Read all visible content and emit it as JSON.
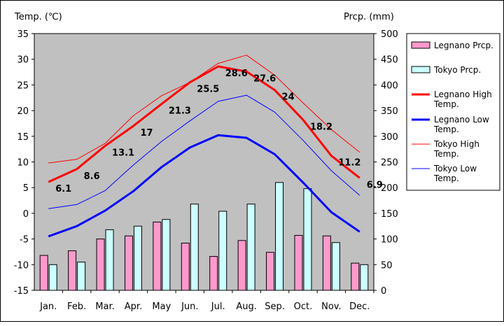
{
  "chart_data": {
    "type": "bar+line",
    "categories": [
      "Jan.",
      "Feb.",
      "Mar.",
      "Apr.",
      "May",
      "Jun.",
      "Jul.",
      "Aug.",
      "Sep.",
      "Oct.",
      "Nov.",
      "Dec."
    ],
    "y_left_label": "Temp. (℃)",
    "y_right_label": "Prcp. (mm)",
    "y_left_lim": [
      -15,
      35
    ],
    "y_left_ticks": [
      35,
      30,
      25,
      20,
      15,
      10,
      5,
      0,
      -5,
      -10,
      -15
    ],
    "y_right_lim": [
      0,
      500
    ],
    "y_right_ticks": [
      500,
      450,
      400,
      350,
      300,
      250,
      200,
      150,
      100,
      50,
      0
    ],
    "grid": false,
    "plot_background": "#c0c0c0",
    "legend_position": "right",
    "bars": [
      {
        "name": "Legnano Prcp.",
        "color": "#ff99cc",
        "axis": "right",
        "values": [
          68,
          77,
          100,
          106,
          133,
          92,
          66,
          97,
          74,
          107,
          106,
          53
        ]
      },
      {
        "name": "Tokyo Prcp.",
        "color": "#ccffff",
        "axis": "right",
        "values": [
          50,
          55,
          118,
          125,
          138,
          168,
          154,
          168,
          210,
          198,
          93,
          50
        ]
      }
    ],
    "lines": [
      {
        "name": "Legnano High Temp.",
        "color": "#ff0000",
        "width": 3,
        "values": [
          6.1,
          8.6,
          13.1,
          17,
          21.3,
          25.5,
          28.6,
          27.6,
          24,
          18.2,
          11.2,
          6.9
        ]
      },
      {
        "name": "Legnano Low Temp.",
        "color": "#0000ff",
        "width": 3,
        "values": [
          -4.5,
          -2.5,
          0.5,
          4.3,
          9,
          12.8,
          15.2,
          14.7,
          11.5,
          6,
          0.2,
          -3.6
        ]
      },
      {
        "name": "Tokyo High Temp.",
        "color": "#ff0000",
        "width": 1,
        "values": [
          9.8,
          10.5,
          13.6,
          19,
          22.9,
          25.5,
          29.2,
          30.8,
          26.9,
          21.5,
          16.3,
          11.9
        ]
      },
      {
        "name": "Tokyo Low Temp.",
        "color": "#0000ff",
        "width": 1,
        "values": [
          0.9,
          1.7,
          4.4,
          9.4,
          14,
          18,
          21.8,
          23,
          19.7,
          14.2,
          8.3,
          3.5
        ]
      }
    ],
    "data_labels": {
      "series": "Legnano High Temp.",
      "labels": [
        "6.1",
        "8.6",
        "13.1",
        "17",
        "21.3",
        "25.5",
        "28.6",
        "27.6",
        "24",
        "18.2",
        "11.2",
        "6.9"
      ]
    }
  }
}
